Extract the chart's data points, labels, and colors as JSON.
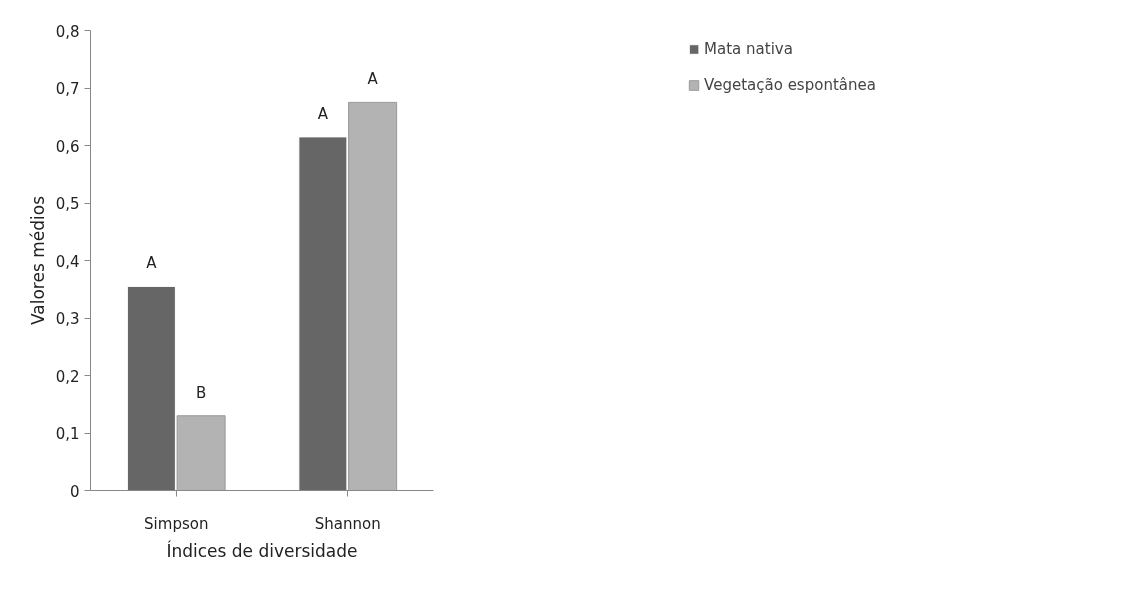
{
  "chart_data": {
    "type": "bar",
    "xlabel": "Índices de diversidade",
    "ylabel": "Valores médios",
    "categories": [
      "Simpson",
      "Shannon"
    ],
    "series": [
      {
        "name": "Mata nativa",
        "color": "#666666",
        "values": [
          0.355,
          0.615
        ]
      },
      {
        "name": "Vegetação espontânea",
        "color": "#b3b3b3",
        "values": [
          0.13,
          0.675
        ]
      }
    ],
    "ylim": [
      0,
      0.8
    ],
    "yticks": [
      0,
      {
        "value": 0.1,
        "label": "0,1"
      },
      {
        "value": 0.2,
        "label": "0,2"
      },
      {
        "value": 0.3,
        "label": "0,3"
      },
      {
        "value": 0.4,
        "label": "0,4"
      },
      {
        "value": 0.5,
        "label": "0,5"
      },
      {
        "value": 0.6,
        "label": "0,6"
      },
      {
        "value": 0.7,
        "label": "0,7"
      },
      {
        "value": 0.8,
        "label": "0,8"
      }
    ],
    "annotations": [
      {
        "text": "A",
        "x": "Simpson",
        "y": 0.355
      },
      {
        "text": "B",
        "x": "Simpson",
        "y": 0.13
      },
      {
        "text": "A",
        "x": "Shannon",
        "y": 0.615
      },
      {
        "text": "A",
        "x": "Shannon",
        "y": 0.675
      }
    ],
    "grid": false,
    "legend": "right"
  }
}
